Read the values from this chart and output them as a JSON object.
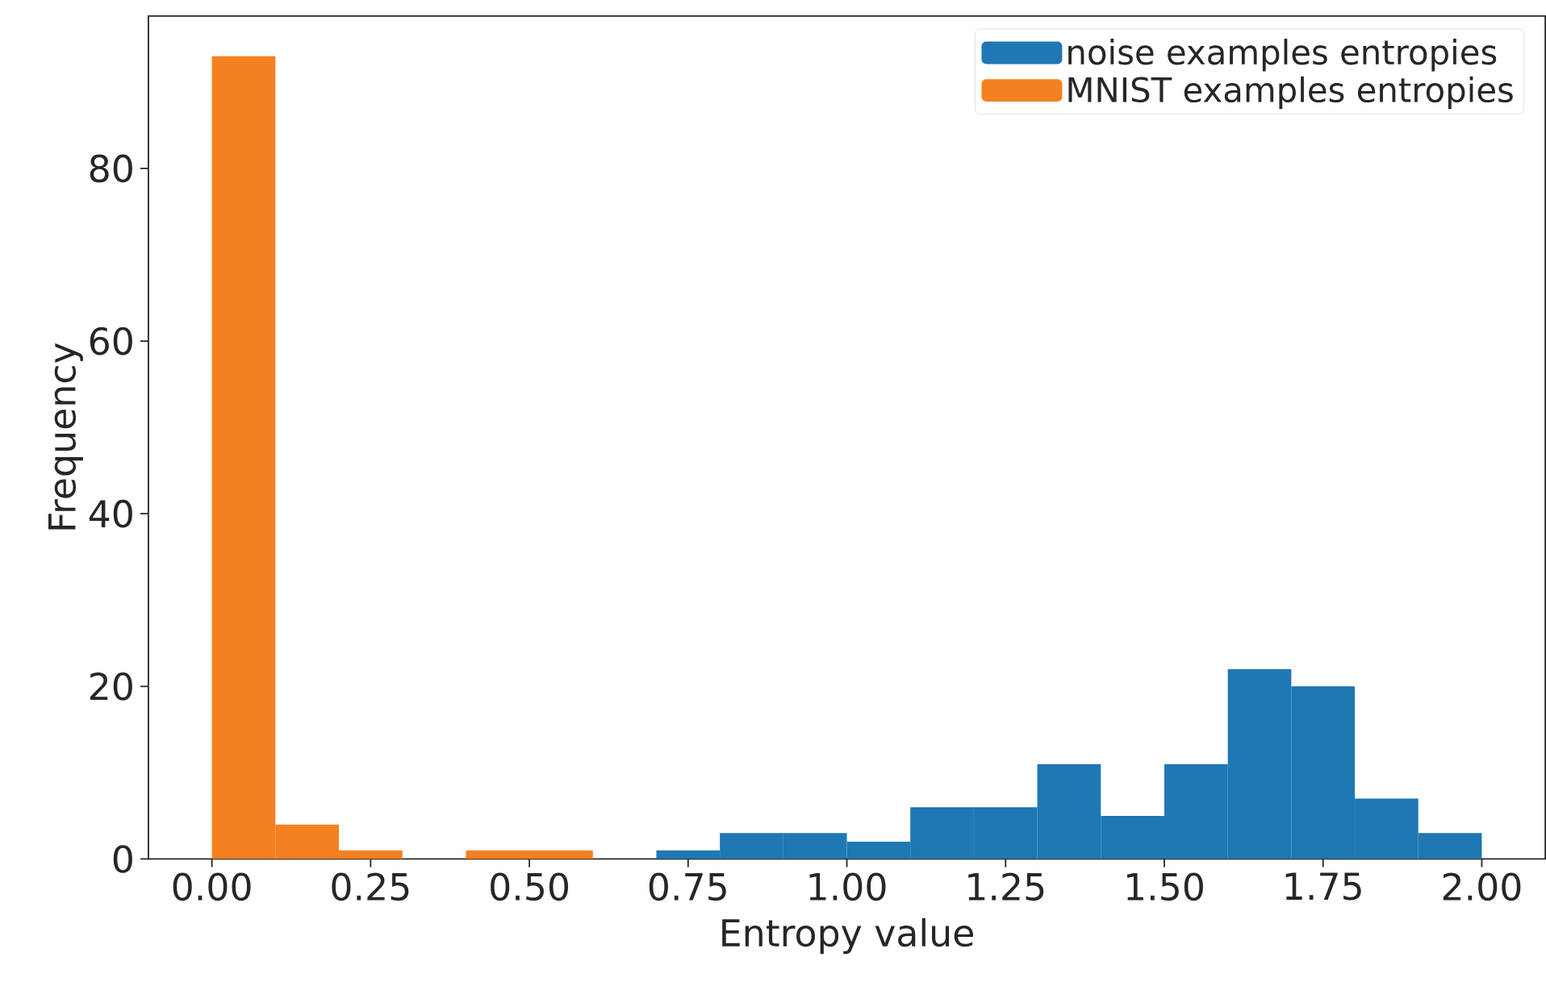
{
  "chart_data": {
    "type": "histogram",
    "xlabel": "Entropy value",
    "ylabel": "Frequency",
    "series": [
      {
        "name": "noise examples entropies",
        "color": "#1f77b4",
        "values": [
          null,
          null,
          null,
          null,
          null,
          null,
          null,
          1,
          3,
          3,
          2,
          6,
          6,
          11,
          5,
          11,
          22,
          20,
          7,
          3
        ]
      },
      {
        "name": "MNIST examples entropies",
        "color": "#f58020",
        "values": [
          93,
          4,
          1,
          0,
          1,
          1,
          null,
          null,
          null,
          null,
          null,
          null,
          null,
          null,
          null,
          null,
          null,
          null,
          null,
          null
        ]
      }
    ],
    "bins": [
      0.0,
      0.1,
      0.2,
      0.3,
      0.4,
      0.5,
      0.6,
      0.7,
      0.8,
      0.9,
      1.0,
      1.1,
      1.2,
      1.3,
      1.4,
      1.5,
      1.6,
      1.7,
      1.8,
      1.9,
      2.0
    ],
    "xlim": [
      -0.1,
      2.1
    ],
    "ylim": [
      0,
      97.65
    ],
    "xticks": [
      {
        "value": 0,
        "label": "0.00"
      },
      {
        "value": 0.25,
        "label": "0.25"
      },
      {
        "value": 0.5,
        "label": "0.50"
      },
      {
        "value": 0.75,
        "label": "0.75"
      },
      {
        "value": 1.0,
        "label": "1.00"
      },
      {
        "value": 1.25,
        "label": "1.25"
      },
      {
        "value": 1.5,
        "label": "1.50"
      },
      {
        "value": 1.75,
        "label": "1.75"
      },
      {
        "value": 2.0,
        "label": "2.00"
      }
    ],
    "yticks": [
      {
        "value": 0,
        "label": "0"
      },
      {
        "value": 20,
        "label": "20"
      },
      {
        "value": 40,
        "label": "40"
      },
      {
        "value": 60,
        "label": "60"
      },
      {
        "value": 80,
        "label": "80"
      }
    ],
    "grid": false,
    "legend": "top right"
  }
}
